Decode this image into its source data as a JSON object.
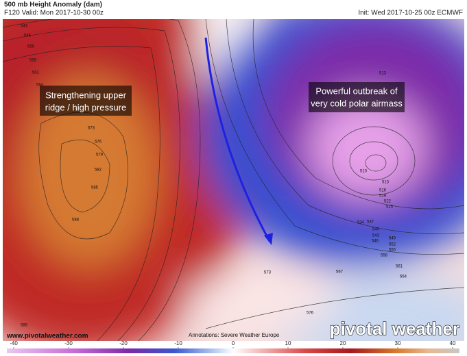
{
  "header": {
    "title": "500 mb Height Anomaly (dam)",
    "valid": "F120 Valid: Mon 2017-10-30 00z",
    "init": "Init: Wed 2017-10-25 00z ECMWF"
  },
  "annotations": [
    [
      "Strengthening upper",
      "ridge / high pressure"
    ],
    [
      "Powerful outbreak of",
      "very cold polar airmass"
    ]
  ],
  "contour_labels": [
    543,
    546,
    555,
    558,
    561,
    564,
    573,
    576,
    579,
    582,
    585,
    588,
    588,
    573,
    576,
    513,
    510,
    513,
    516,
    519,
    522,
    525,
    534,
    537,
    540,
    543,
    546,
    549,
    552,
    555,
    558,
    561,
    564,
    567
  ],
  "footer": {
    "website": "www.pivotalweather.com",
    "credit": "Annotations: Severe Weather Europe",
    "logo": "pivotal weather"
  },
  "colorbar": {
    "ticks": [
      -40,
      -30,
      -20,
      -10,
      0,
      10,
      20,
      30,
      40
    ]
  }
}
